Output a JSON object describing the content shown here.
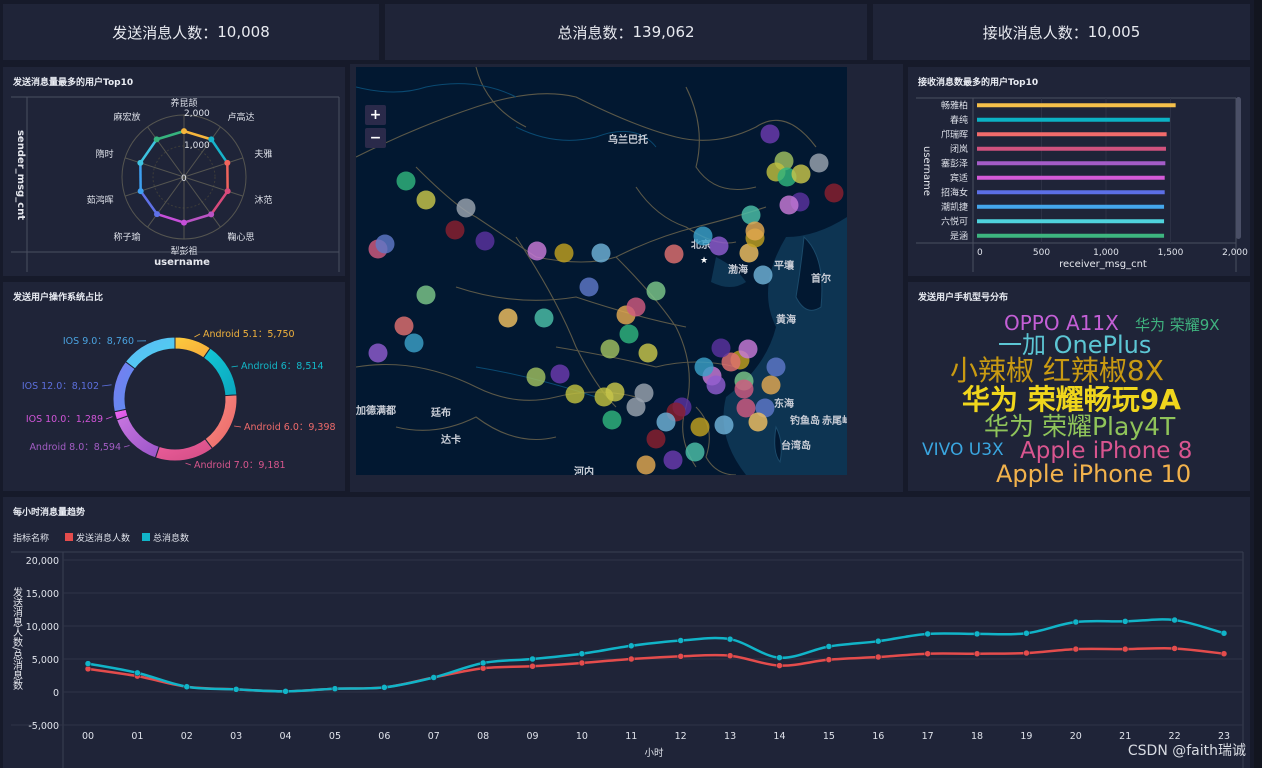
{
  "kpis": [
    {
      "label": "发送消息人数",
      "value": "10,008"
    },
    {
      "label": "总消息数",
      "value": "139,062"
    },
    {
      "label": "接收消息人数",
      "value": "10,005"
    }
  ],
  "kpi_sep": "：",
  "radar": {
    "title": "发送消息量最多的用户Top10",
    "ylabel": "sender_msg_cnt",
    "xlabel": "username",
    "ticks": [
      "0",
      "1,000",
      "2,000"
    ],
    "max": 2000
  },
  "os": {
    "title": "发送用户操作系统占比"
  },
  "map": {
    "zoom_in": "+",
    "zoom_out": "−",
    "labels": [
      "乌兰巴托",
      "北京",
      "渤海",
      "平壤",
      "首尔",
      "黄海",
      "东海",
      "钓鱼岛",
      "赤尾屿",
      "台湾岛",
      "加德满都",
      "廷布",
      "达卡",
      "河内"
    ]
  },
  "bar": {
    "title": "接收消息数最多的用户Top10",
    "ylabel": "username",
    "xlabel": "receiver_msg_cnt",
    "ticks": [
      "0",
      "500",
      "1,000",
      "1,500",
      "2,000"
    ],
    "max": 2000
  },
  "wordcloud": {
    "title": "发送用户手机型号分布",
    "words": [
      {
        "text": "OPPO A11X",
        "color": "#c45fd6"
      },
      {
        "text": "华为 荣耀9X",
        "color": "#3fb27f"
      },
      {
        "text": "一加 OnePlus",
        "color": "#5cc6d4"
      },
      {
        "text": "小辣椒 红辣椒8X",
        "color": "#c99a12"
      },
      {
        "text": "华为 荣耀畅玩9A",
        "color": "#f0d61c"
      },
      {
        "text": "华为 荣耀Play4T",
        "color": "#8fc45a"
      },
      {
        "text": "VIVO U3X",
        "color": "#3aa6e0"
      },
      {
        "text": "Apple iPhone 8",
        "color": "#d9558f"
      },
      {
        "text": "Apple iPhone 10",
        "color": "#f2b24c"
      }
    ]
  },
  "trend": {
    "title": "每小时消息量趋势",
    "legend_title": "指标名称"
  },
  "watermark": "CSDN @faith瑞诚",
  "chart_data": [
    {
      "type": "radar",
      "title": "发送消息量最多的用户Top10",
      "categories": [
        "养昆颉",
        "卢高达",
        "夫雅",
        "沐范",
        "鞠心思",
        "犁彭祖",
        "称子瑜",
        "茹鸿晖",
        "隋时",
        "麻宏放"
      ],
      "values": [
        1480,
        1500,
        1470,
        1480,
        1490,
        1470,
        1480,
        1470,
        1480,
        1500
      ],
      "range": [
        0,
        2000
      ],
      "colors": [
        "#f5b53c",
        "#17b3c9",
        "#f0645c",
        "#d84a7b",
        "#b953c4",
        "#c64fd9",
        "#5f71e8",
        "#3d9ff0",
        "#3ec3e0",
        "#36b37e"
      ],
      "xlabel": "username",
      "ylabel": "sender_msg_cnt"
    },
    {
      "type": "pie",
      "title": "发送用户操作系统占比",
      "slices": [
        {
          "name": "Android 5.1",
          "value": 5750,
          "color": "#fccb3d",
          "color2": "#f5a93a"
        },
        {
          "name": "Android 6",
          "value": 8514,
          "color": "#14c8d6",
          "color2": "#0aa5bd"
        },
        {
          "name": "Android 6.0",
          "value": 9398,
          "color": "#fb8c83",
          "color2": "#e86666"
        },
        {
          "name": "Android 7.0",
          "value": 9181,
          "color": "#ef5f9d",
          "color2": "#d14d84"
        },
        {
          "name": "Android 8.0",
          "value": 8594,
          "color": "#c876e0",
          "color2": "#9a54c8"
        },
        {
          "name": "IOS 10.0",
          "value": 1289,
          "color": "#f36df5",
          "color2": "#d050e0"
        },
        {
          "name": "IOS 12.0",
          "value": 8102,
          "color": "#7a7cf0",
          "color2": "#5b8ef0"
        },
        {
          "name": "IOS 9.0",
          "value": 8760,
          "color": "#5fb7f5",
          "color2": "#4ad5f0"
        }
      ],
      "label_colors": [
        "#f0b23d",
        "#13b7c7",
        "#ee6b6b",
        "#d8568d",
        "#a35dc4",
        "#d155d8",
        "#5c6fdc",
        "#4aa2df"
      ]
    },
    {
      "type": "bar",
      "orientation": "horizontal",
      "title": "接收消息数最多的用户Top10",
      "categories": [
        "畅雅柏",
        "春纯",
        "邝瑞晖",
        "闭岚",
        "塞彭泽",
        "宾适",
        "招海女",
        "潮凯捷",
        "六悦可",
        "是涵"
      ],
      "values": [
        1540,
        1495,
        1470,
        1465,
        1460,
        1455,
        1455,
        1450,
        1450,
        1450
      ],
      "colors": [
        "#f5c04a",
        "#0bb2c4",
        "#f26b6b",
        "#d0527e",
        "#a45cc8",
        "#d45ad8",
        "#5c6fe6",
        "#44a6ec",
        "#4fd2dc",
        "#3db57f"
      ],
      "xlim": [
        0,
        2000
      ],
      "xlabel": "receiver_msg_cnt",
      "ylabel": "username"
    },
    {
      "type": "line",
      "title": "每小时消息量趋势",
      "x": [
        "00",
        "01",
        "02",
        "03",
        "04",
        "05",
        "06",
        "07",
        "08",
        "09",
        "10",
        "11",
        "12",
        "13",
        "14",
        "15",
        "16",
        "17",
        "18",
        "19",
        "20",
        "21",
        "22",
        "23"
      ],
      "series": [
        {
          "name": "发送消息人数",
          "color": "#e44c4c",
          "values": [
            3500,
            2400,
            800,
            400,
            100,
            500,
            700,
            2200,
            3600,
            3900,
            4400,
            5000,
            5400,
            5500,
            4000,
            4900,
            5300,
            5800,
            5800,
            5900,
            6500,
            6500,
            6600,
            5800
          ]
        },
        {
          "name": "总消息数",
          "color": "#11b4c8",
          "values": [
            4300,
            2900,
            800,
            400,
            100,
            500,
            700,
            2200,
            4400,
            5000,
            5800,
            7000,
            7800,
            8000,
            5200,
            6900,
            7700,
            8800,
            8800,
            8900,
            10600,
            10700,
            10900,
            8900
          ]
        }
      ],
      "ylim": [
        -5000,
        20000
      ],
      "yticks": [
        "-5,000",
        "0",
        "5,000",
        "10,000",
        "15,000",
        "20,000"
      ],
      "xlabel": "小时",
      "ylabel": "发送消息人数/总消息数",
      "legend": "top-left",
      "grid": true
    }
  ]
}
